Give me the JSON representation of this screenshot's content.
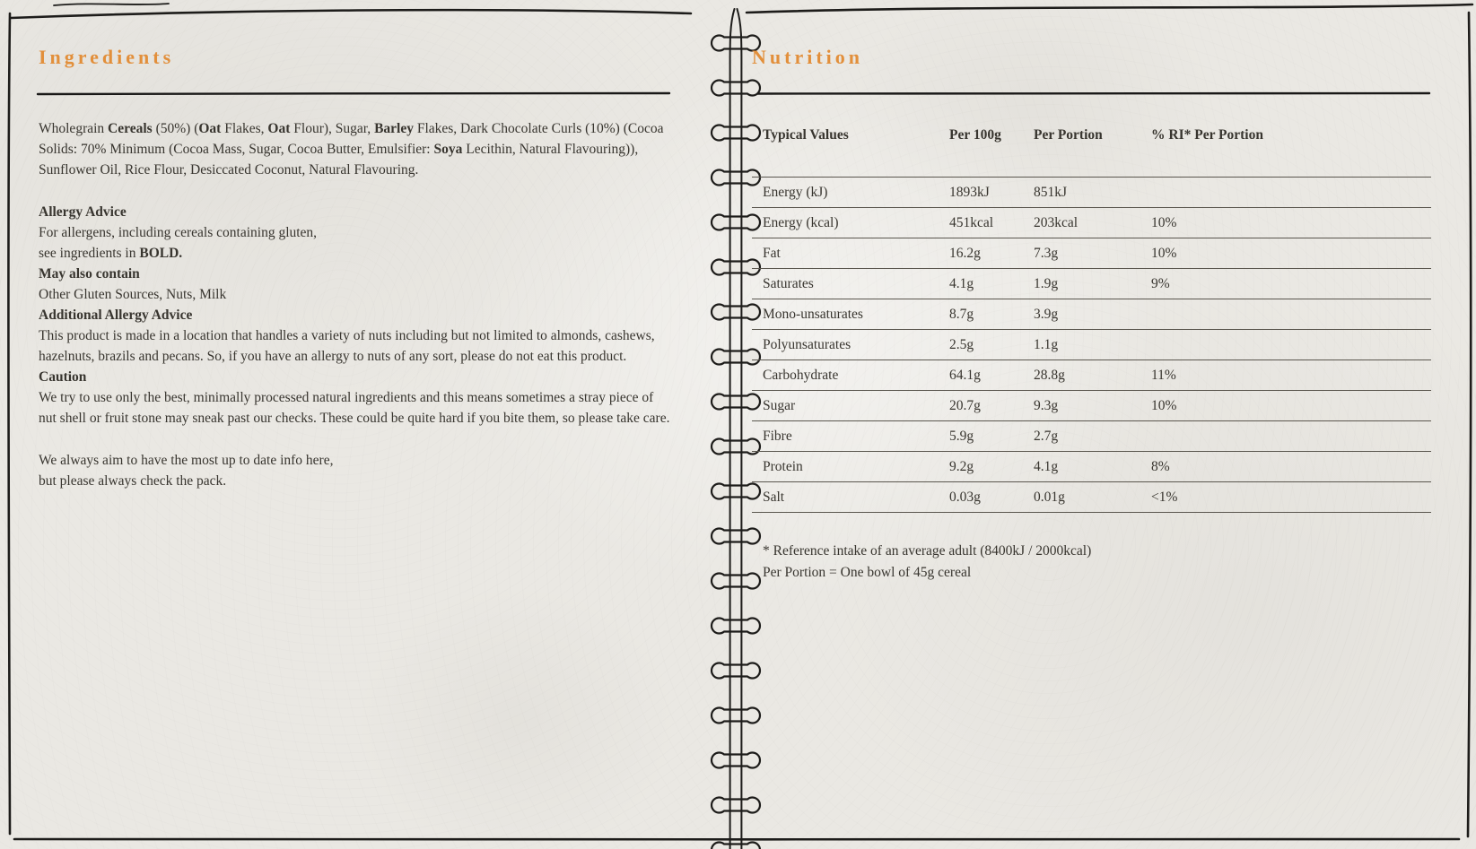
{
  "colors": {
    "accent": "#e28f3b",
    "ink": "#1d1c1a",
    "ink-text": "#38352f",
    "rule": "#5a564e",
    "paper": "#eae8e3"
  },
  "left": {
    "title": "Ingredients",
    "blocks": [
      {
        "style": "para",
        "name": "ingredients-list",
        "segments": [
          {
            "t": "Wholegrain "
          },
          {
            "t": "Cereals",
            "b": true
          },
          {
            "t": " (50%) ("
          },
          {
            "t": "Oat",
            "b": true
          },
          {
            "t": " Flakes, "
          },
          {
            "t": "Oat",
            "b": true
          },
          {
            "t": " Flour), Sugar, "
          },
          {
            "t": "Barley",
            "b": true
          },
          {
            "t": " Flakes, Dark Chocolate Curls (10%) (Cocoa Solids: 70% Minimum (Cocoa Mass, Sugar, Cocoa Butter, Emulsifier: "
          },
          {
            "t": "Soya",
            "b": true
          },
          {
            "t": " Lecithin, Natural Flavouring)), Sunflower Oil, Rice Flour, Desiccated Coconut, Natural Flavouring."
          }
        ]
      },
      {
        "style": "gap",
        "name": "spacer-1"
      },
      {
        "style": "bold",
        "name": "allergy-advice-heading",
        "text": "Allergy Advice"
      },
      {
        "style": "line",
        "name": "allergy-advice-line-1",
        "text": "For allergens, including cereals containing gluten,"
      },
      {
        "style": "line",
        "name": "allergy-advice-line-2",
        "segments": [
          {
            "t": "see ingredients in "
          },
          {
            "t": "BOLD.",
            "b": true
          }
        ]
      },
      {
        "style": "bold",
        "name": "may-also-contain-heading",
        "text": "May also contain"
      },
      {
        "style": "line",
        "name": "may-also-contain-line",
        "text": "Other Gluten Sources, Nuts, Milk"
      },
      {
        "style": "bold",
        "name": "additional-allergy-advice-heading",
        "text": "Additional Allergy Advice"
      },
      {
        "style": "para",
        "name": "additional-allergy-advice-text",
        "text": "This product is made in a location that handles a variety of nuts including but not limited to almonds, cashews, hazelnuts, brazils and pecans. So, if you have an allergy to nuts of any sort, please do not eat this product."
      },
      {
        "style": "bold",
        "name": "caution-heading",
        "text": "Caution"
      },
      {
        "style": "para",
        "name": "caution-text",
        "text": "We try to use only the best, minimally processed natural ingredients and this means sometimes a stray piece of nut shell or fruit stone may sneak past our checks. These could be quite hard if you bite them, so please take care."
      },
      {
        "style": "gap",
        "name": "spacer-2"
      },
      {
        "style": "line",
        "name": "up-to-date-line-1",
        "text": "We always aim to have the most up to date info here,"
      },
      {
        "style": "line",
        "name": "up-to-date-line-2",
        "text": "but please always check the pack."
      }
    ]
  },
  "right": {
    "title": "Nutrition",
    "table": {
      "headers": [
        "Typical Values",
        "Per 100g",
        "Per Portion",
        "% RI* Per Portion"
      ],
      "rows": [
        {
          "label": "Energy (kJ)",
          "per100g": "1893kJ",
          "perPortion": "851kJ",
          "ri": ""
        },
        {
          "label": "Energy (kcal)",
          "per100g": "451kcal",
          "perPortion": "203kcal",
          "ri": "10%"
        },
        {
          "label": "Fat",
          "per100g": "16.2g",
          "perPortion": "7.3g",
          "ri": "10%"
        },
        {
          "label": "Saturates",
          "per100g": "4.1g",
          "perPortion": "1.9g",
          "ri": "9%"
        },
        {
          "label": "Mono-unsaturates",
          "per100g": "8.7g",
          "perPortion": "3.9g",
          "ri": ""
        },
        {
          "label": "Polyunsaturates",
          "per100g": "2.5g",
          "perPortion": "1.1g",
          "ri": ""
        },
        {
          "label": "Carbohydrate",
          "per100g": "64.1g",
          "perPortion": "28.8g",
          "ri": "11%"
        },
        {
          "label": "Sugar",
          "per100g": "20.7g",
          "perPortion": "9.3g",
          "ri": "10%"
        },
        {
          "label": "Fibre",
          "per100g": "5.9g",
          "perPortion": "2.7g",
          "ri": ""
        },
        {
          "label": "Protein",
          "per100g": "9.2g",
          "perPortion": "4.1g",
          "ri": "8%"
        },
        {
          "label": "Salt",
          "per100g": "0.03g",
          "perPortion": "0.01g",
          "ri": "<1%"
        }
      ]
    },
    "footnotes": [
      "* Reference intake of an average adult (8400kJ / 2000kcal)",
      "Per Portion = One bowl of 45g cereal"
    ]
  }
}
